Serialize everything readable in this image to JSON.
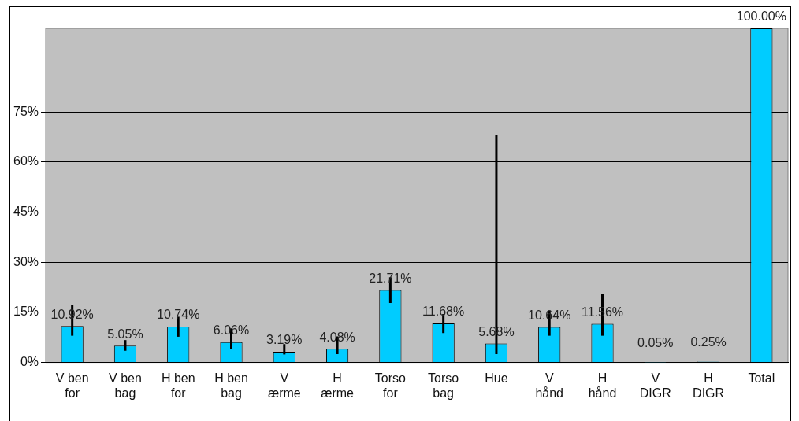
{
  "chart_data": {
    "type": "bar",
    "categories": [
      "V ben for",
      "V ben bag",
      "H ben for",
      "H ben bag",
      "V ærme",
      "H ærme",
      "Torso for",
      "Torso bag",
      "Hue",
      "V hånd",
      "H hånd",
      "V DIGR",
      "H DIGR",
      "Total"
    ],
    "values": [
      10.92,
      5.05,
      10.74,
      6.06,
      3.19,
      4.08,
      21.71,
      11.68,
      5.68,
      10.64,
      11.56,
      0.05,
      0.25,
      100
    ],
    "value_labels": [
      "10.92%",
      "5.05%",
      "10.74%",
      "6.06%",
      "3.19%",
      "4.08%",
      "21.71%",
      "11.68%",
      "5.68%",
      "10.64%",
      "11.56%",
      "0.05%",
      "0.25%",
      "100.00%"
    ],
    "errors": [
      [
        8.0,
        17.3
      ],
      [
        3.5,
        6.7
      ],
      [
        7.7,
        13.7
      ],
      [
        4.1,
        10.2
      ],
      [
        2.4,
        5.5
      ],
      [
        2.5,
        7.8
      ],
      [
        17.8,
        25.5
      ],
      [
        8.8,
        14.5
      ],
      [
        2.5,
        68.2
      ],
      [
        8.0,
        15.5
      ],
      [
        8.0,
        20.4
      ],
      null,
      null,
      null
    ],
    "color": "#00ccff",
    "ylim": [
      0,
      100
    ],
    "yticks": [
      {
        "value": 0,
        "label": "0%"
      },
      {
        "value": 15,
        "label": "15%"
      },
      {
        "value": 30,
        "label": "30%"
      },
      {
        "value": 45,
        "label": "45%"
      },
      {
        "value": 60,
        "label": "60%"
      },
      {
        "value": 75,
        "label": "75%"
      }
    ],
    "grid": "y",
    "legend": false
  }
}
